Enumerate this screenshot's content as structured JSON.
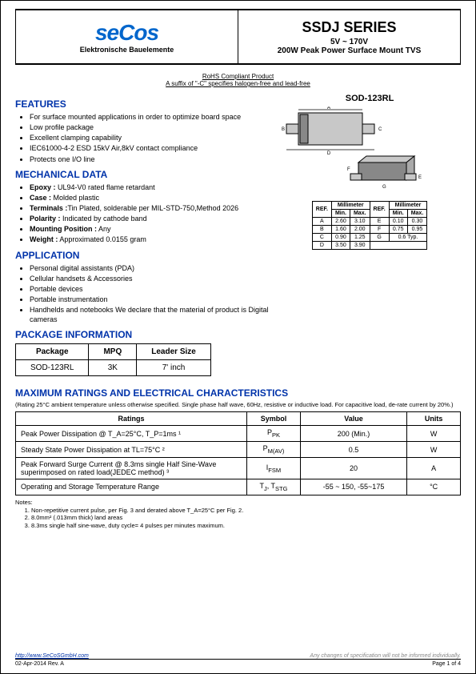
{
  "header": {
    "logo_text": "seCos",
    "logo_subtitle": "Elektronische Bauelemente",
    "series_title": "SSDJ SERIES",
    "voltage_range": "5V ~ 170V",
    "product_desc": "200W Peak Power Surface Mount TVS"
  },
  "rohs": {
    "line1": "RoHS Compliant Product",
    "line2": "A suffix of \"-C\" specifies halogen-free and lead-free"
  },
  "features": {
    "heading": "FEATURES",
    "items": [
      "For surface mounted applications in order to optimize board space",
      "Low profile package",
      "Excellent clamping capability",
      "IEC61000-4-2 ESD 15kV Air,8kV contact compliance",
      "Protects one I/O line"
    ]
  },
  "mechanical": {
    "heading": "MECHANICAL DATA",
    "items": [
      {
        "label": "Epoxy :",
        "value": " UL94-V0 rated flame retardant"
      },
      {
        "label": "Case :",
        "value": " Molded plastic"
      },
      {
        "label": "Terminals :",
        "value": "Tin Plated, solderable per MIL-STD-750,Method 2026"
      },
      {
        "label": "Polarity :",
        "value": " Indicated by cathode band"
      },
      {
        "label": "Mounting Position :",
        "value": " Any"
      },
      {
        "label": "Weight :",
        "value": " Approximated 0.0155 gram"
      }
    ]
  },
  "application": {
    "heading": "APPLICATION",
    "items": [
      "Personal digital assistants (PDA)",
      "Cellular handsets & Accessories",
      "Portable devices",
      "Portable instrumentation",
      "Handhelds and notebooks We declare that the material of product is Digital cameras"
    ]
  },
  "package_info": {
    "heading": "PACKAGE INFORMATION",
    "columns": [
      "Package",
      "MPQ",
      "Leader Size"
    ],
    "row": [
      "SOD-123RL",
      "3K",
      "7' inch"
    ]
  },
  "sod": {
    "label": "SOD-123RL",
    "drawing_colors": {
      "body_fill": "#c8c8c8",
      "body_dark": "#888888",
      "stroke": "#000000",
      "arrow": "#000000"
    }
  },
  "dimensions": {
    "header_ref": "REF.",
    "header_mm": "Millimeter",
    "header_min": "Min.",
    "header_max": "Max.",
    "rows_left": [
      [
        "A",
        "2.60",
        "3.10"
      ],
      [
        "B",
        "1.60",
        "2.00"
      ],
      [
        "C",
        "0.90",
        "1.25"
      ],
      [
        "D",
        "3.50",
        "3.90"
      ]
    ],
    "rows_right": [
      [
        "E",
        "0.10",
        "0.30"
      ],
      [
        "F",
        "0.75",
        "0.95"
      ],
      [
        "G",
        "0.6 Typ."
      ],
      [
        "",
        ""
      ]
    ]
  },
  "ratings": {
    "heading": "MAXIMUM RATINGS AND ELECTRICAL CHARACTERISTICS",
    "condition_note": "(Rating 25°C ambient temperature unless otherwise specified. Single phase half wave, 60Hz, resistive or inductive load. For capacitive load, de-rate current by 20%.)",
    "columns": [
      "Ratings",
      "Symbol",
      "Value",
      "Units"
    ],
    "rows": [
      {
        "rating": "Peak Power Dissipation @ T_A=25°C, T_P=1ms ¹",
        "sym_html": "P<sub>PK</sub>",
        "value": "200 (Min.)",
        "unit": "W"
      },
      {
        "rating": "Steady State Power Dissipation at TL=75°C ²",
        "sym_html": "P<sub>M(AV)</sub>",
        "value": "0.5",
        "unit": "W"
      },
      {
        "rating": "Peak Forward Surge Current @ 8.3ms single Half Sine-Wave superimposed on rated load(JEDEC method) ³",
        "sym_html": "I<sub>FSM</sub>",
        "value": "20",
        "unit": "A"
      },
      {
        "rating": "Operating and Storage Temperature Range",
        "sym_html": "T<sub>J</sub>, T<sub>STG</sub>",
        "value": "-55 ~ 150, -55~175",
        "unit": "°C"
      }
    ]
  },
  "notes": {
    "heading": "Notes:",
    "items": [
      "Non-repetitive current pulse, per Fig. 3 and derated above T_A=25°C per Fig. 2.",
      "8.0mm² (.013mm thick) land areas",
      "8.3ms single half sine-wave, duty cycle= 4 pulses per minutes maximum."
    ]
  },
  "footer": {
    "url": "http://www.SeCoSGmbH.com",
    "disclaimer": "Any changes of specification will not be informed individually.",
    "date_rev": "02-Apr-2014 Rev. A",
    "page": "Page  1  of  4"
  }
}
